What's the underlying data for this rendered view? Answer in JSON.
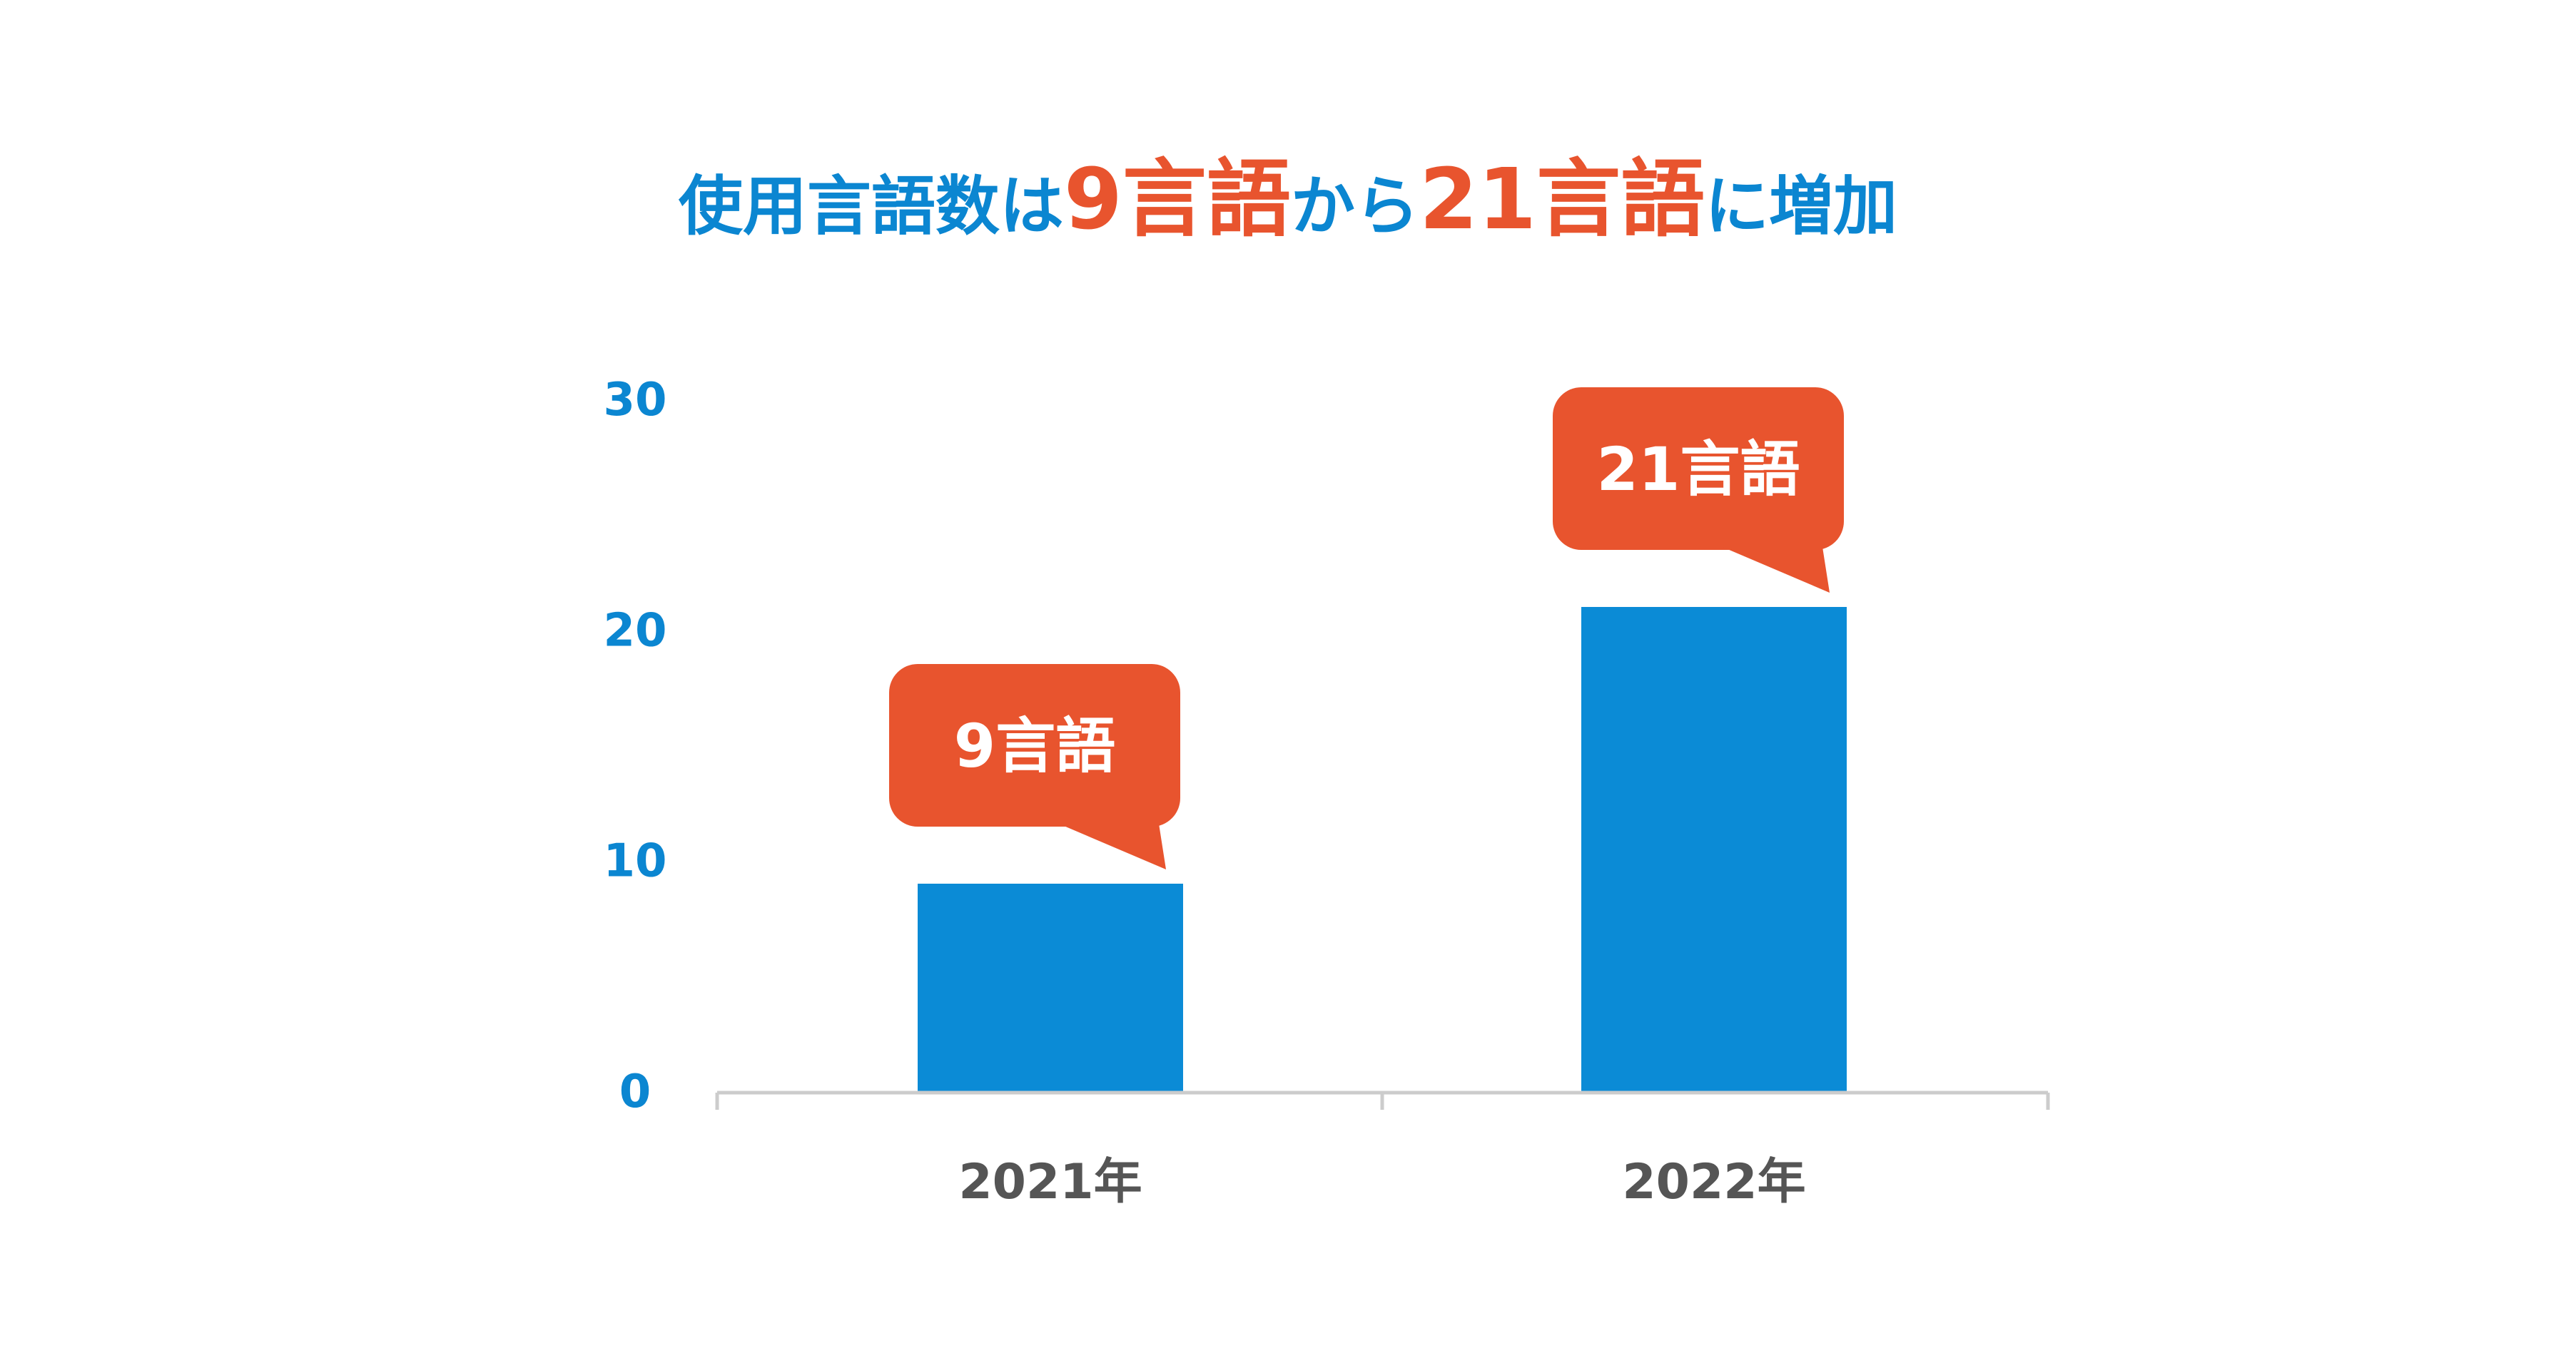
{
  "title": {
    "segments": [
      {
        "text": "使用言語数は",
        "color": "#0b86d1",
        "emphasis": false
      },
      {
        "text": "9言語",
        "color": "#e8542e",
        "emphasis": true
      },
      {
        "text": "から",
        "color": "#0b86d1",
        "emphasis": false
      },
      {
        "text": "21言語",
        "color": "#e8542e",
        "emphasis": true
      },
      {
        "text": "に増加",
        "color": "#0b86d1",
        "emphasis": false
      }
    ]
  },
  "colors": {
    "bar": "#0b8bd6",
    "callout": "#e8542e",
    "callout_text": "#ffffff",
    "ytick": "#0b86d1",
    "xtick": "#555555",
    "axis": "#cccccc"
  },
  "chart_data": {
    "type": "bar",
    "title": "使用言語数は9言語から21言語に増加",
    "categories": [
      "2021年",
      "2022年"
    ],
    "values": [
      9,
      21
    ],
    "data_labels": [
      "9言語",
      "21言語"
    ],
    "yticks": [
      "0",
      "10",
      "20",
      "30"
    ],
    "ylim": [
      0,
      30
    ],
    "xlabel": "",
    "ylabel": "",
    "grid": false,
    "legend": "none"
  }
}
